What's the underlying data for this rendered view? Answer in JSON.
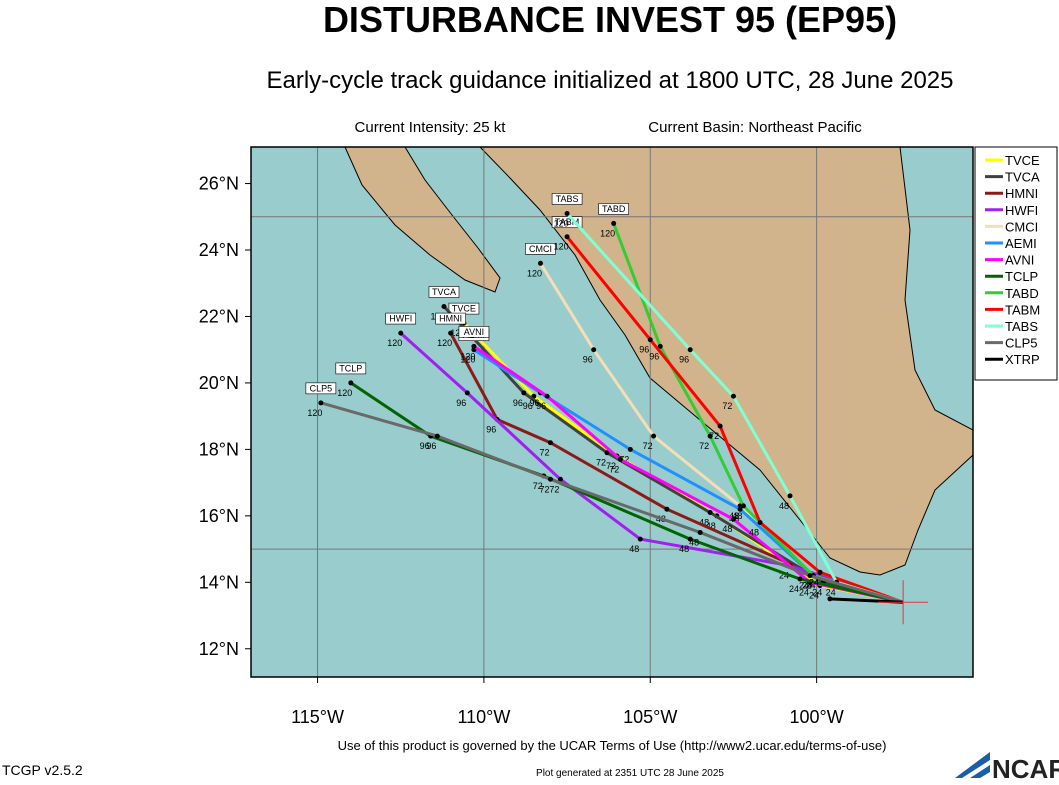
{
  "chart_data": {
    "type": "track",
    "title": "DISTURBANCE INVEST 95 (EP95)",
    "subtitle": "Early-cycle track guidance initialized at 1800 UTC, 28 June 2025",
    "intensity": "Current Intensity: 25 kt",
    "basin": "Current Basin: Northeast Pacific",
    "terms": "Use of this product is governed by the UCAR Terms of Use (http://www2.ucar.edu/terms-of-use)",
    "version": "TCGP v2.5.2",
    "generated": "Plot generated at 2351 UTC   28 June 2025",
    "logo": "NCAR",
    "xlim": [
      -117,
      -95.3
    ],
    "ylim": [
      11.15,
      27.1
    ],
    "xticks": [
      {
        "value": -115,
        "label": "115°W"
      },
      {
        "value": -110,
        "label": "110°W"
      },
      {
        "value": -105,
        "label": "105°W"
      },
      {
        "value": -100,
        "label": "100°W"
      }
    ],
    "yticks": [
      {
        "value": 12,
        "label": "12°N"
      },
      {
        "value": 14,
        "label": "14°N"
      },
      {
        "value": 16,
        "label": "16°N"
      },
      {
        "value": 18,
        "label": "18°N"
      },
      {
        "value": 20,
        "label": "20°N"
      },
      {
        "value": 22,
        "label": "22°N"
      },
      {
        "value": 24,
        "label": "24°N"
      },
      {
        "value": 26,
        "label": "26°N"
      }
    ],
    "grid_lon": [
      -115,
      -110,
      -105,
      -100
    ],
    "grid_lat": [
      15,
      25
    ],
    "hours": [
      0,
      24,
      48,
      72,
      96,
      120
    ],
    "series": [
      {
        "name": "TVCE",
        "color": "#ffff00",
        "lon": [
          -97.4,
          -99.9,
          -103,
          -106,
          -108.5,
          -110.6
        ],
        "lat": [
          13.4,
          13.9,
          16,
          17.8,
          19.6,
          21.8
        ]
      },
      {
        "name": "TVCA",
        "color": "#404040",
        "lon": [
          -97.4,
          -99.8,
          -103.2,
          -106.3,
          -108.8,
          -111.2
        ],
        "lat": [
          13.4,
          14.0,
          16.1,
          17.9,
          19.7,
          22.3
        ]
      },
      {
        "name": "HMNI",
        "color": "#8b1a1a",
        "lon": [
          -97.4,
          -100,
          -104.5,
          -108,
          -109.6,
          -111
        ],
        "lat": [
          13.4,
          14.2,
          16.2,
          18.2,
          18.9,
          21.5
        ]
      },
      {
        "name": "HWFI",
        "color": "#a020f0",
        "lon": [
          -97.4,
          -100.8,
          -105.3,
          -107.7,
          -110.5,
          -112.5
        ],
        "lat": [
          13.4,
          14.5,
          15.3,
          17.1,
          19.7,
          21.5
        ]
      },
      {
        "name": "CMCI",
        "color": "#f5deb3",
        "lon": [
          -97.4,
          -99.9,
          -102.3,
          -104.9,
          -106.7,
          -108.3
        ],
        "lat": [
          13.4,
          14.3,
          16.3,
          18.4,
          21.0,
          23.6
        ]
      },
      {
        "name": "AEMI",
        "color": "#1e90ff",
        "lon": [
          -97.4,
          -100.1,
          -102.3,
          -105.6,
          -108.3,
          -110.3
        ],
        "lat": [
          13.4,
          14.2,
          16.2,
          18.0,
          19.7,
          21.0
        ]
      },
      {
        "name": "AVNI",
        "color": "#ff00ff",
        "lon": [
          -97.4,
          -100.2,
          -102.5,
          -105.9,
          -108.1,
          -110.3
        ],
        "lat": [
          13.4,
          14.0,
          15.9,
          17.7,
          19.6,
          21.1
        ]
      },
      {
        "name": "TCLP",
        "color": "#006400",
        "lon": [
          -97.4,
          -100.5,
          -103.8,
          -108.2,
          -111.6,
          -114
        ],
        "lat": [
          13.4,
          14.1,
          15.3,
          17.2,
          18.4,
          20
        ]
      },
      {
        "name": "TABD",
        "color": "#32cd32",
        "lon": [
          -97.4,
          -100.1,
          -102.2,
          -103.2,
          -104.7,
          -106.1
        ],
        "lat": [
          13.4,
          14.2,
          16.3,
          18.4,
          21.1,
          24.8
        ]
      },
      {
        "name": "TABM",
        "color": "#ff0000",
        "lon": [
          -97.4,
          -99.9,
          -101.7,
          -102.9,
          -105,
          -107.5
        ],
        "lat": [
          13.4,
          14.3,
          15.8,
          18.7,
          21.3,
          24.4
        ]
      },
      {
        "name": "TABS",
        "color": "#7fffd4",
        "lon": [
          -97.4,
          -99.4,
          -100.8,
          -102.5,
          -103.8,
          -107.5
        ],
        "lat": [
          13.4,
          14.0,
          16.6,
          19.6,
          21,
          25.1
        ]
      },
      {
        "name": "CLP5",
        "color": "#696969",
        "lon": [
          -97.4,
          -100.2,
          -103.5,
          -108,
          -111.4,
          -114.9
        ],
        "lat": [
          13.4,
          14.2,
          15.5,
          17.1,
          18.4,
          19.4
        ]
      },
      {
        "name": "XTRP",
        "color": "#000000",
        "lon": [
          -97.4,
          -99.6
        ],
        "lat": [
          13.4,
          13.5
        ]
      }
    ]
  }
}
